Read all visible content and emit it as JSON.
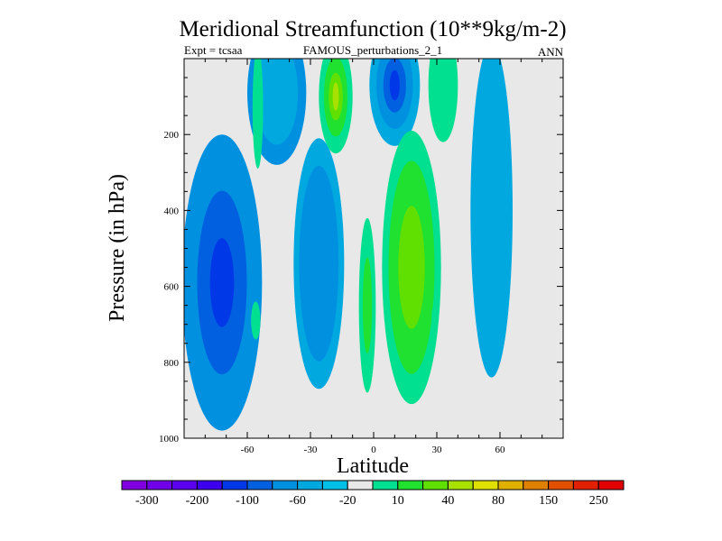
{
  "chart_data": {
    "type": "contour",
    "title": "Meridional Streamfunction (10**9kg/m-2)",
    "left_label": "Expt = tcsaa",
    "center_label": "FAMOUS_perturbations_2_1",
    "right_label": "ANN",
    "xlabel": "Latitude",
    "ylabel": "Pressure (in hPa)",
    "xlim": [
      -90,
      90
    ],
    "ylim": [
      1000,
      0
    ],
    "x_ticks": [
      {
        "value": -60,
        "label": "-60"
      },
      {
        "value": -30,
        "label": "-30"
      },
      {
        "value": 0,
        "label": "0"
      },
      {
        "value": 30,
        "label": "30"
      },
      {
        "value": 60,
        "label": "60"
      }
    ],
    "y_ticks": [
      {
        "value": 200,
        "label": "200"
      },
      {
        "value": 400,
        "label": "400"
      },
      {
        "value": 600,
        "label": "600"
      },
      {
        "value": 800,
        "label": "800"
      },
      {
        "value": 1000,
        "label": "1000"
      }
    ],
    "background_color": "#e8e8e8",
    "colorbar": {
      "colors": [
        "#8000e0",
        "#7000e8",
        "#5a00ee",
        "#3c00ee",
        "#0038e8",
        "#0060e0",
        "#0090e0",
        "#00a8e0",
        "#00c0e8",
        "#e8e8e8",
        "#00e090",
        "#20e030",
        "#60e000",
        "#a8e000",
        "#e0e000",
        "#e0b000",
        "#e08000",
        "#e05000",
        "#e02000",
        "#e00000"
      ],
      "labels": [
        "-300",
        "-200",
        "-100",
        "-60",
        "-20",
        "10",
        "40",
        "80",
        "150",
        "250"
      ]
    },
    "cells": [
      {
        "name": "sh-deep-cell",
        "lat": -72,
        "p": 590,
        "w": 19,
        "h": 390,
        "levels": [
          {
            "c": 6,
            "s": 1.0
          },
          {
            "c": 5,
            "s": 0.62
          },
          {
            "c": 4,
            "s": 0.3
          }
        ]
      },
      {
        "name": "sh-upper-cell",
        "lat": -46,
        "p": 90,
        "w": 14,
        "h": 190,
        "levels": [
          {
            "c": 6,
            "s": 1.0
          },
          {
            "c": 7,
            "s": 0.72
          }
        ]
      },
      {
        "name": "sh-mid-cell",
        "lat": -26,
        "p": 540,
        "w": 12,
        "h": 330,
        "levels": [
          {
            "c": 7,
            "s": 1.0
          },
          {
            "c": 6,
            "s": 0.78
          }
        ]
      },
      {
        "name": "sh-upper-positive",
        "lat": -18,
        "p": 100,
        "w": 8,
        "h": 150,
        "levels": [
          {
            "c": 10,
            "s": 1.0
          },
          {
            "c": 11,
            "s": 0.7
          },
          {
            "c": 12,
            "s": 0.42
          },
          {
            "c": 13,
            "s": 0.18
          }
        ]
      },
      {
        "name": "sh-polar-positive",
        "lat": -55,
        "p": 130,
        "w": 2.5,
        "h": 160,
        "levels": [
          {
            "c": 10,
            "s": 1.0
          }
        ]
      },
      {
        "name": "sh-small-positive",
        "lat": -56,
        "p": 690,
        "w": 2.2,
        "h": 50,
        "levels": [
          {
            "c": 10,
            "s": 1.0
          }
        ]
      },
      {
        "name": "eq-narrow-positive",
        "lat": -3,
        "p": 650,
        "w": 4,
        "h": 230,
        "levels": [
          {
            "c": 10,
            "s": 1.0
          },
          {
            "c": 11,
            "s": 0.55
          }
        ]
      },
      {
        "name": "eq-upper-negative",
        "lat": 10,
        "p": 70,
        "w": 12,
        "h": 160,
        "levels": [
          {
            "c": 7,
            "s": 1.0
          },
          {
            "c": 6,
            "s": 0.72
          },
          {
            "c": 5,
            "s": 0.45
          },
          {
            "c": 4,
            "s": 0.2
          }
        ]
      },
      {
        "name": "nh-deep-positive",
        "lat": 18,
        "p": 550,
        "w": 14,
        "h": 360,
        "levels": [
          {
            "c": 10,
            "s": 1.0
          },
          {
            "c": 11,
            "s": 0.78
          },
          {
            "c": 12,
            "s": 0.45
          }
        ]
      },
      {
        "name": "nh-upper-positive",
        "lat": 33,
        "p": 70,
        "w": 7,
        "h": 150,
        "levels": [
          {
            "c": 10,
            "s": 1.0
          }
        ]
      },
      {
        "name": "nh-small-positive",
        "lat": 29,
        "p": 680,
        "w": 1.5,
        "h": 30,
        "levels": [
          {
            "c": 10,
            "s": 1.0
          }
        ]
      },
      {
        "name": "nh-deep-negative",
        "lat": 56,
        "p": 400,
        "w": 10,
        "h": 440,
        "levels": [
          {
            "c": 7,
            "s": 1.0
          }
        ]
      }
    ]
  }
}
